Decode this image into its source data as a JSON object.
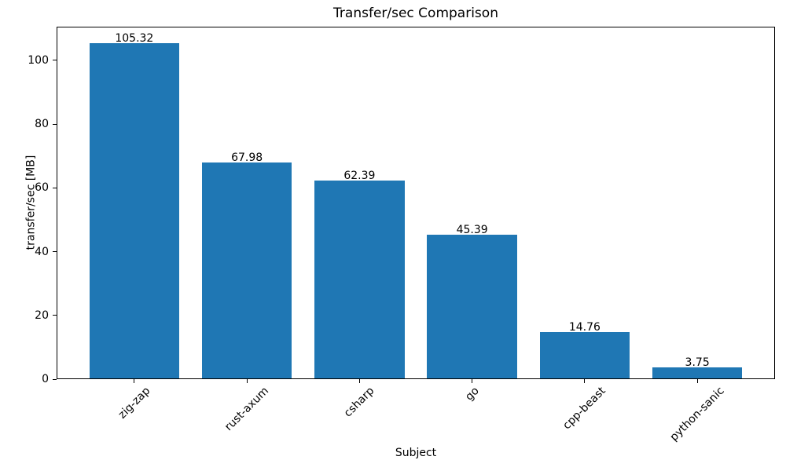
{
  "chart_data": {
    "type": "bar",
    "title": "Transfer/sec Comparison",
    "xlabel": "Subject",
    "ylabel": "transfer/sec [MB]",
    "categories": [
      "zig-zap",
      "rust-axum",
      "csharp",
      "go",
      "cpp-beast",
      "python-sanic"
    ],
    "values": [
      105.32,
      67.98,
      62.39,
      45.39,
      14.76,
      3.75
    ],
    "value_labels": [
      "105.32",
      "67.98",
      "62.39",
      "45.39",
      "14.76",
      "3.75"
    ],
    "ylim": [
      0,
      110.59
    ],
    "yticks": [
      0,
      20,
      40,
      60,
      80,
      100
    ],
    "ytick_labels": [
      "0",
      "20",
      "40",
      "60",
      "80",
      "100"
    ],
    "bar_color": "#1f77b4",
    "text_color": "#000000",
    "background_color": "#ffffff",
    "grid": false,
    "legend": null,
    "bar_width_fraction": 0.8,
    "x_tick_rotation_deg": 45
  }
}
